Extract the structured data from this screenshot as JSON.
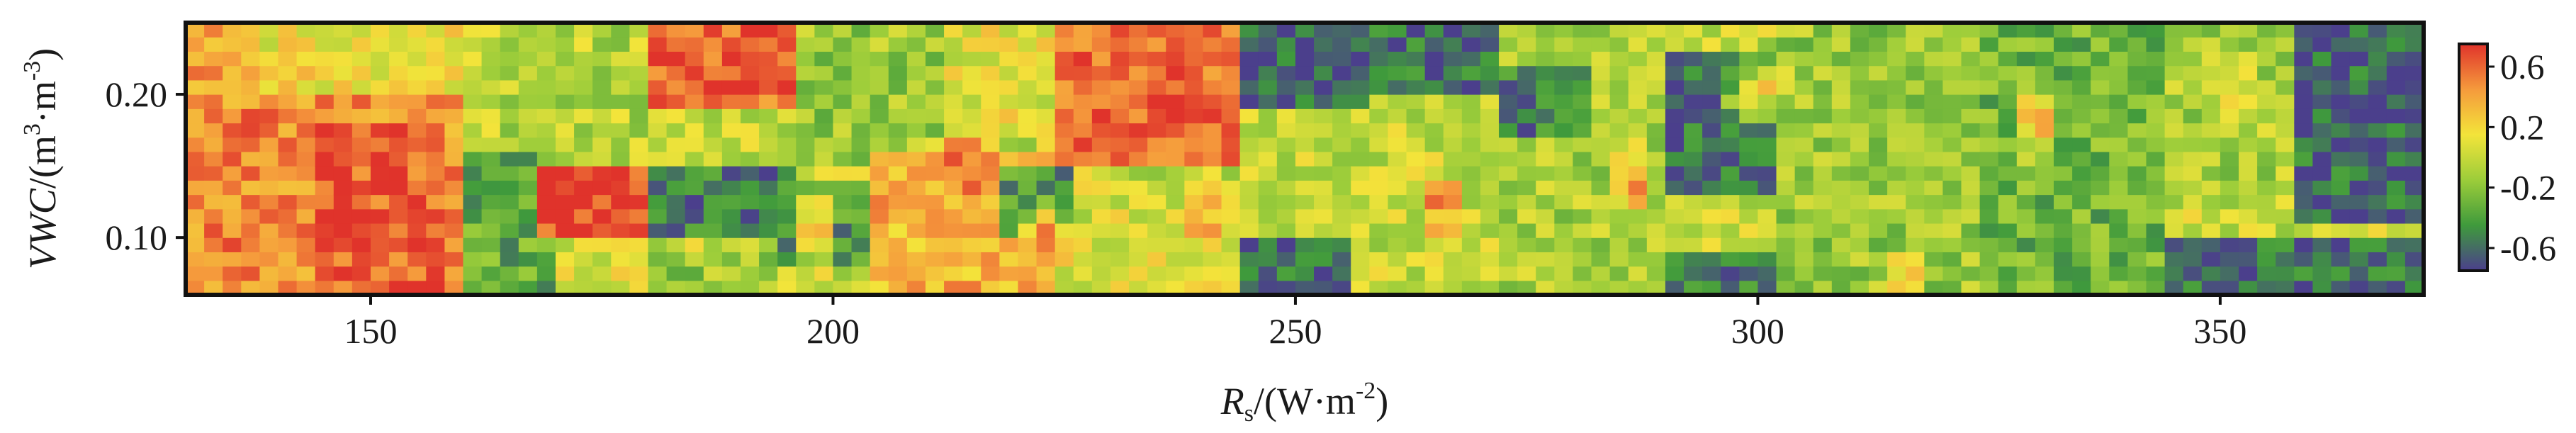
{
  "chart_data": {
    "type": "heatmap",
    "x_ticks": [
      150,
      200,
      250,
      300,
      350
    ],
    "y_ticks": [
      "0.10",
      "0.20"
    ],
    "xlim": [
      130,
      372
    ],
    "ylim": [
      0.06,
      0.25
    ],
    "grid": false,
    "colorbar": {
      "ticks": [
        "0.6",
        "0.2",
        "-0.2",
        "-0.6"
      ],
      "range": [
        -0.75,
        0.75
      ],
      "colors": [
        "#4b3f8c",
        "#3f9a3c",
        "#9ccd3a",
        "#f3e43a",
        "#f59a3c",
        "#e0332b"
      ]
    },
    "grid_size": {
      "x_start": 130,
      "x_step": 2,
      "cols": 121,
      "y_start": 0.06,
      "y_step": 0.01,
      "rows": 19
    },
    "regions": [
      {
        "x": [
          130,
          160
        ],
        "y": [
          0.06,
          0.25
        ],
        "value": 0.45
      },
      {
        "x": [
          130,
          148
        ],
        "y": [
          0.06,
          0.19
        ],
        "value": 0.5
      },
      {
        "x": [
          145,
          158
        ],
        "y": [
          0.06,
          0.18
        ],
        "value": 0.62
      },
      {
        "x": [
          138,
          160
        ],
        "y": [
          0.2,
          0.25
        ],
        "value": 0.15
      },
      {
        "x": [
          160,
          180
        ],
        "y": [
          0.17,
          0.25
        ],
        "value": -0.05
      },
      {
        "x": [
          160,
          170
        ],
        "y": [
          0.06,
          0.16
        ],
        "value": -0.35
      },
      {
        "x": [
          168,
          182
        ],
        "y": [
          0.1,
          0.15
        ],
        "value": 0.7
      },
      {
        "x": [
          170,
          180
        ],
        "y": [
          0.06,
          0.09
        ],
        "value": 0.1
      },
      {
        "x": [
          180,
          196
        ],
        "y": [
          0.19,
          0.25
        ],
        "value": 0.58
      },
      {
        "x": [
          180,
          196
        ],
        "y": [
          0.1,
          0.15
        ],
        "value": -0.55
      },
      {
        "x": [
          180,
          195
        ],
        "y": [
          0.06,
          0.09
        ],
        "value": -0.15
      },
      {
        "x": [
          196,
          212
        ],
        "y": [
          0.15,
          0.25
        ],
        "value": -0.15
      },
      {
        "x": [
          195,
          205
        ],
        "y": [
          0.08,
          0.14
        ],
        "value": -0.45
      },
      {
        "x": [
          205,
          225
        ],
        "y": [
          0.06,
          0.16
        ],
        "value": 0.35
      },
      {
        "x": [
          212,
          225
        ],
        "y": [
          0.17,
          0.25
        ],
        "value": 0.1
      },
      {
        "x": [
          218,
          226
        ],
        "y": [
          0.1,
          0.15
        ],
        "value": -0.45
      },
      {
        "x": [
          225,
          244
        ],
        "y": [
          0.15,
          0.25
        ],
        "value": 0.6
      },
      {
        "x": [
          226,
          242
        ],
        "y": [
          0.06,
          0.14
        ],
        "value": 0.05
      },
      {
        "x": [
          244,
          258
        ],
        "y": [
          0.19,
          0.25
        ],
        "value": -0.65
      },
      {
        "x": [
          244,
          256
        ],
        "y": [
          0.06,
          0.1
        ],
        "value": -0.6
      },
      {
        "x": [
          250,
          272
        ],
        "y": [
          0.1,
          0.18
        ],
        "value": 0.0
      },
      {
        "x": [
          258,
          272
        ],
        "y": [
          0.2,
          0.25
        ],
        "value": -0.6
      },
      {
        "x": [
          272,
          290
        ],
        "y": [
          0.06,
          0.25
        ],
        "value": -0.1
      },
      {
        "x": [
          272,
          282
        ],
        "y": [
          0.17,
          0.22
        ],
        "value": -0.55
      },
      {
        "x": [
          290,
          302
        ],
        "y": [
          0.13,
          0.23
        ],
        "value": -0.6
      },
      {
        "x": [
          290,
          305
        ],
        "y": [
          0.06,
          0.09
        ],
        "value": -0.55
      },
      {
        "x": [
          302,
          325
        ],
        "y": [
          0.06,
          0.25
        ],
        "value": -0.15
      },
      {
        "x": [
          325,
          345
        ],
        "y": [
          0.06,
          0.25
        ],
        "value": -0.3
      },
      {
        "x": [
          345,
          358
        ],
        "y": [
          0.13,
          0.25
        ],
        "value": -0.1
      },
      {
        "x": [
          345,
          372
        ],
        "y": [
          0.06,
          0.1
        ],
        "value": -0.6
      },
      {
        "x": [
          358,
          372
        ],
        "y": [
          0.11,
          0.25
        ],
        "value": -0.62
      }
    ],
    "hotspots": [
      {
        "x": 174,
        "y": 0.12,
        "r": 6,
        "value": 0.72
      },
      {
        "x": 188,
        "y": 0.22,
        "r": 6,
        "value": 0.65
      },
      {
        "x": 232,
        "y": 0.2,
        "r": 8,
        "value": 0.65
      },
      {
        "x": 214,
        "y": 0.15,
        "r": 5,
        "value": 0.5
      },
      {
        "x": 223,
        "y": 0.1,
        "r": 3,
        "value": 0.6
      },
      {
        "x": 286,
        "y": 0.14,
        "r": 3,
        "value": 0.45
      },
      {
        "x": 266,
        "y": 0.12,
        "r": 2,
        "value": 0.55
      },
      {
        "x": 316,
        "y": 0.07,
        "r": 2,
        "value": 0.4
      },
      {
        "x": 300,
        "y": 0.2,
        "r": 4,
        "value": 0.2
      },
      {
        "x": 330,
        "y": 0.18,
        "r": 3,
        "value": 0.3
      },
      {
        "x": 350,
        "y": 0.21,
        "r": 4,
        "value": 0.15
      },
      {
        "x": 198,
        "y": 0.11,
        "r": 3,
        "value": 0.3
      },
      {
        "x": 240,
        "y": 0.12,
        "r": 3,
        "value": 0.4
      }
    ]
  }
}
